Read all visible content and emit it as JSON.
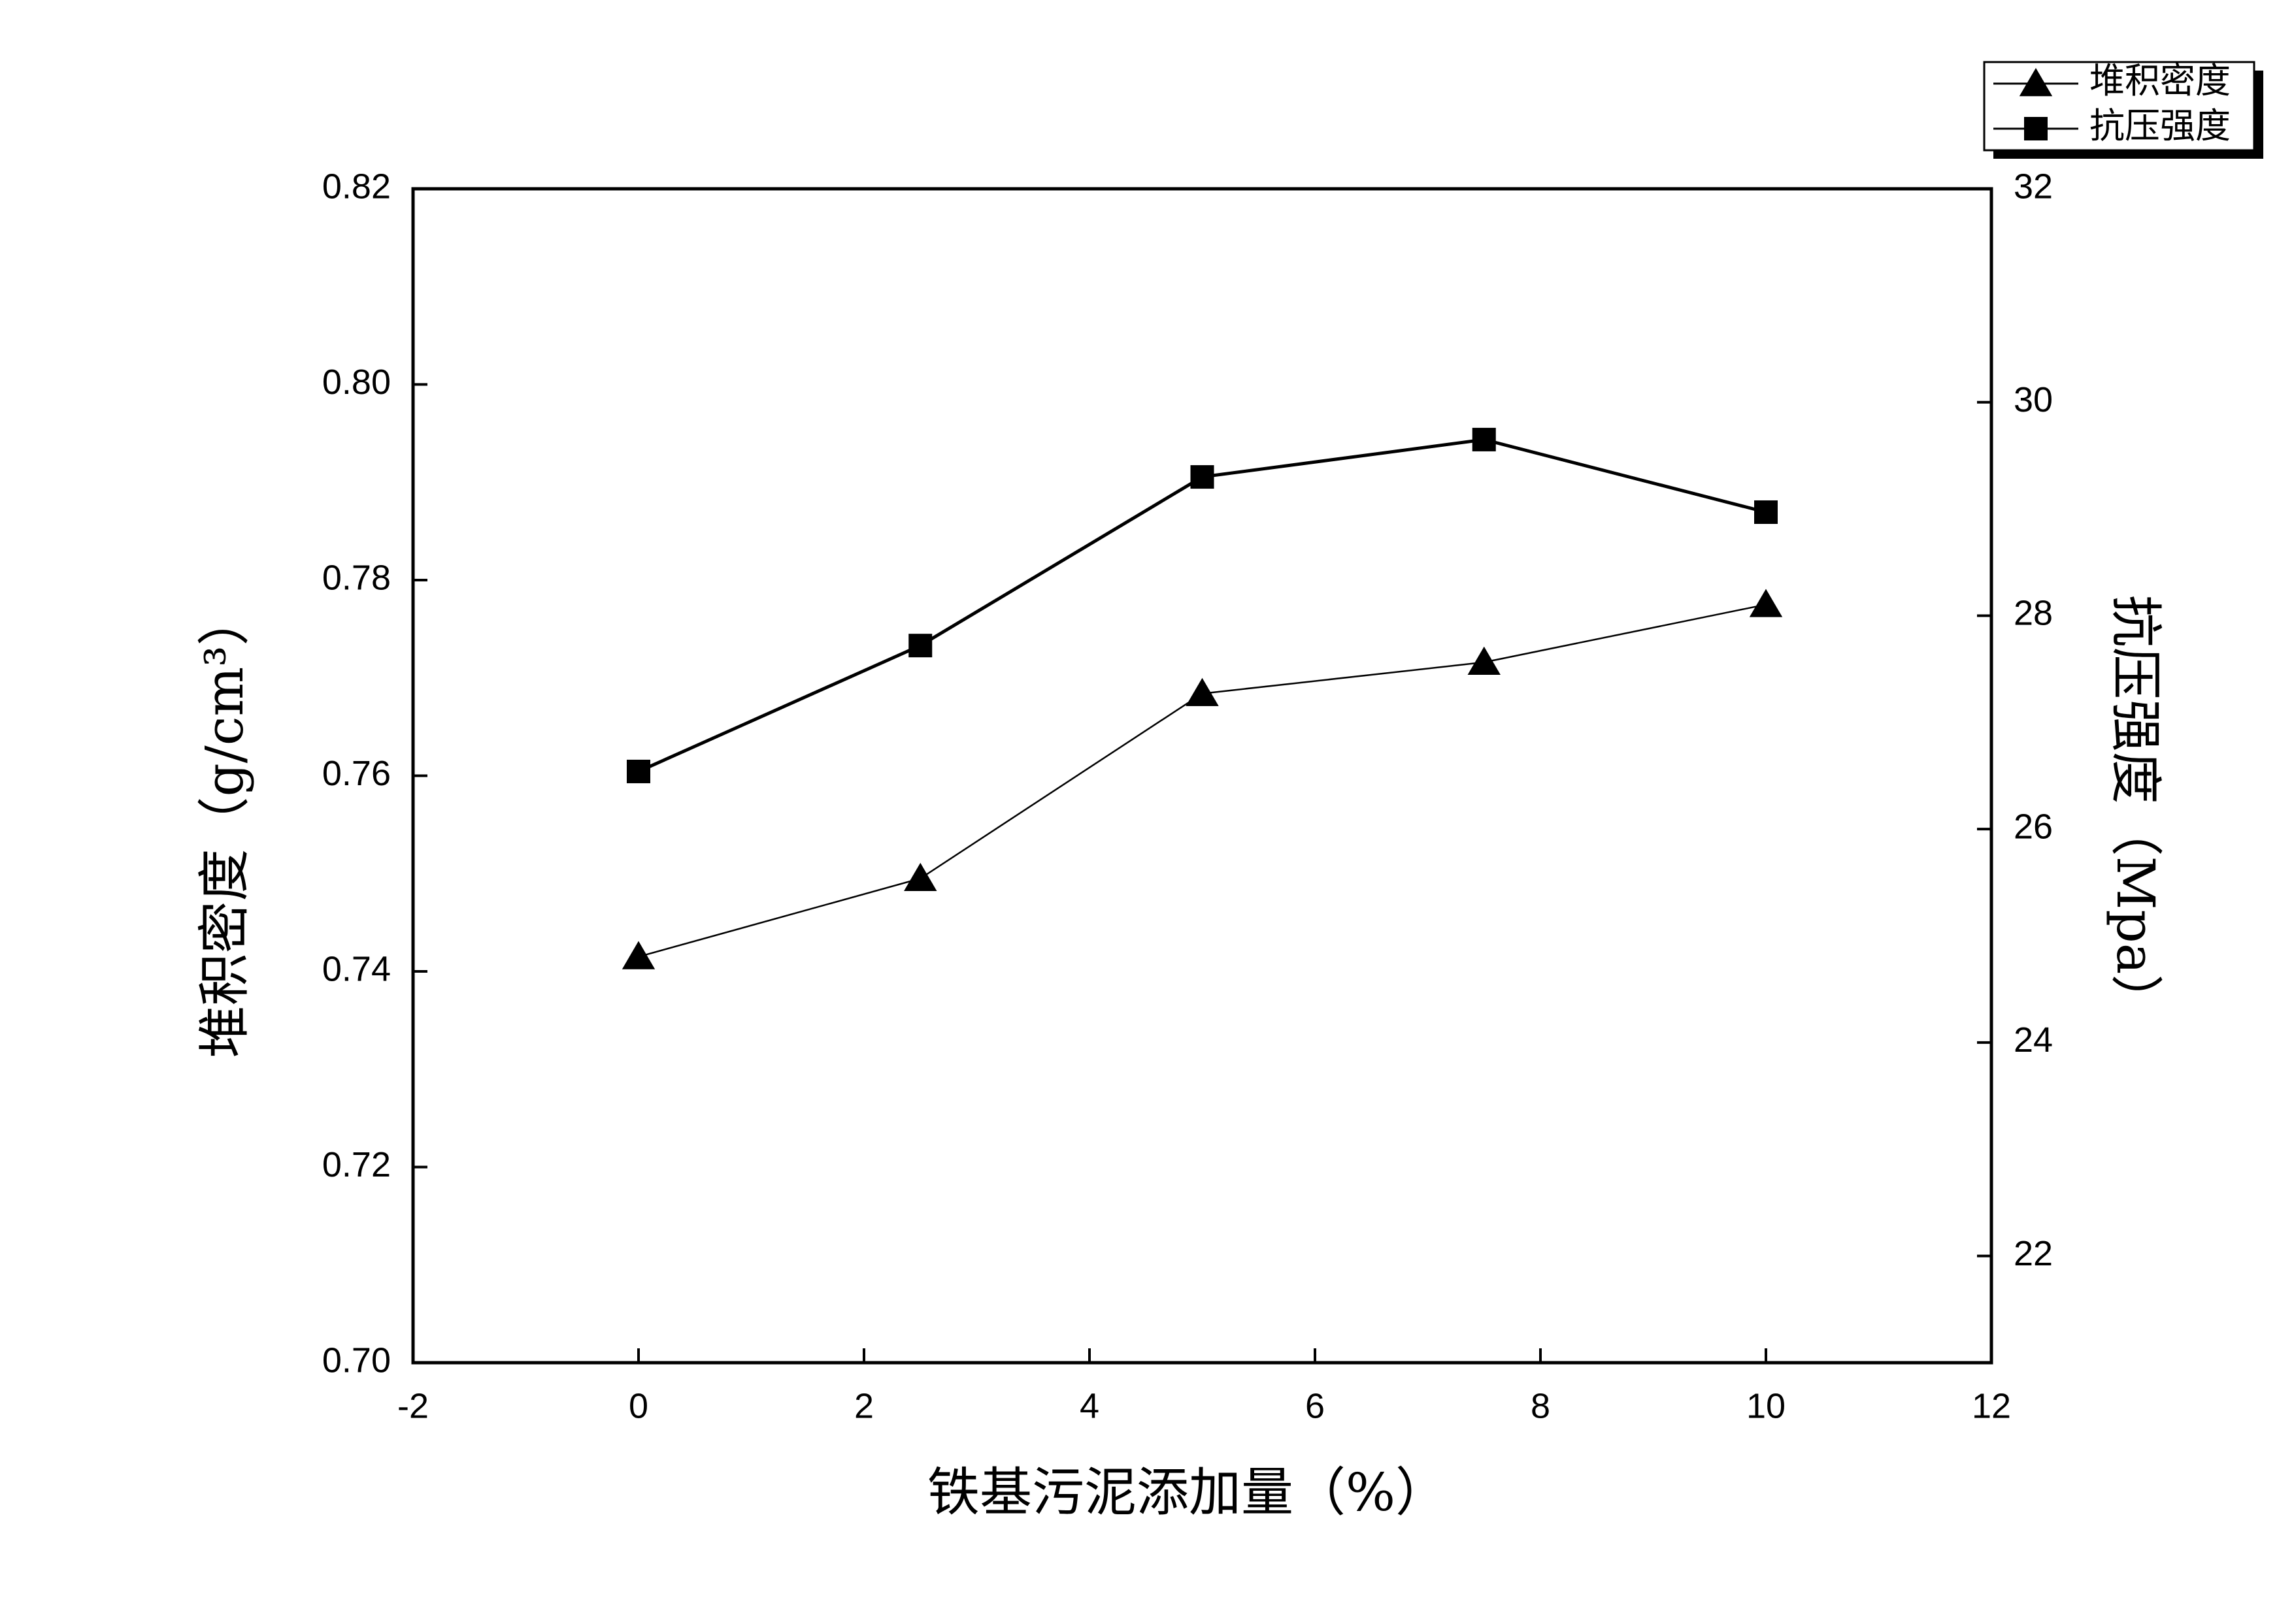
{
  "chart_data": {
    "type": "line",
    "x_label": "铁基污泥添加量（%）",
    "y_label": "堆积密度（g/cm³）",
    "y2_label": "抗压强度（Mpa）",
    "x": [
      0,
      2.5,
      5,
      7.5,
      10
    ],
    "series": [
      {
        "name": "堆积密度",
        "color": "#000000",
        "marker": "triangle",
        "values": [
          0.7415,
          0.7495,
          0.7684,
          0.7716,
          0.7775
        ]
      },
      {
        "name": "抗压强度",
        "color": "#000000",
        "marker": "square",
        "axis": "y2",
        "values": [
          26.54,
          27.72,
          29.3,
          29.65,
          28.97
        ]
      }
    ],
    "xlim": [
      -2,
      12
    ],
    "xticks": [
      -2,
      0,
      2,
      4,
      6,
      8,
      10,
      12
    ],
    "ylim": [
      0.7,
      0.82
    ],
    "yticks": [
      {
        "value": 0.7,
        "label": "0.70"
      },
      0.72,
      0.74,
      0.76,
      0.78,
      {
        "value": 0.8,
        "label": "0.80"
      },
      0.82
    ],
    "y2lim": [
      21,
      32
    ],
    "y2ticks": [
      22,
      24,
      26,
      28,
      30,
      32
    ],
    "legend": "top-right",
    "grid": false
  }
}
